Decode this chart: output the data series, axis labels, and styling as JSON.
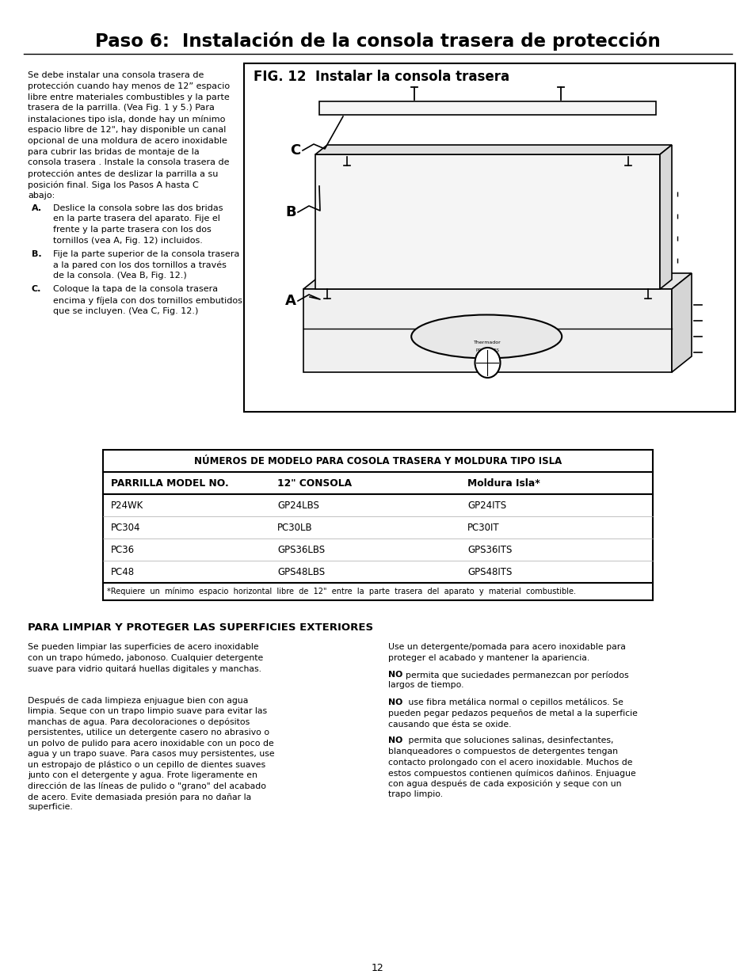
{
  "title": "Paso 6:  Instalación de la consola trasera de protección",
  "page_number": "12",
  "bg_color": "#ffffff",
  "left_col_text": [
    "Se debe instalar una consola trasera de",
    "protección cuando hay menos de 12” espacio",
    "libre entre materiales combustibles y la parte",
    "trasera de la parrilla. (Vea Fig. 1 y 5.) Para",
    "instalaciones tipo isla, donde hay un mínimo",
    "espacio libre de 12\", hay disponible un canal",
    "opcional de una moldura de acero inoxidable",
    "para cubrir las bridas de montaje de la",
    "consola trasera . Instale la consola trasera de",
    "protección antes de deslizar la parrilla a su",
    "posición final. Siga los Pasos A hasta C",
    "abajo:"
  ],
  "list_A_label": "A.",
  "list_A_lines": [
    "Deslice la consola sobre las dos bridas",
    "en la parte trasera del aparato. Fije el",
    "frente y la parte trasera con los dos",
    "tornillos (vea A, Fig. 12) incluidos."
  ],
  "list_B_label": "B.",
  "list_B_lines": [
    "Fije la parte superior de la consola trasera",
    "a la pared con los dos tornillos a través",
    "de la consola. (Vea B, Fig. 12.)"
  ],
  "list_C_label": "C.",
  "list_C_lines": [
    "Coloque la tapa de la consola trasera",
    "encima y fíjela con dos tornillos embutidos",
    "que se incluyen. (Vea C, Fig. 12.)"
  ],
  "fig_title": "FIG. 12  Instalar la consola trasera",
  "table_header1": "NÚMEROS DE MODELO PARA COSOLA TRASERA Y MOLDURA TIPO ISLA",
  "table_col1_header": "PARRILLA MODEL NO.",
  "table_col2_header": "12\" CONSOLA",
  "table_col3_header": "Moldura Isla*",
  "table_rows": [
    [
      "P24WK",
      "GP24LBS",
      "GP24ITS"
    ],
    [
      "PC304",
      "PC30LB",
      "PC30IT"
    ],
    [
      "PC36",
      "GPS36LBS",
      "GPS36ITS"
    ],
    [
      "PC48",
      "GPS48LBS",
      "GPS48ITS"
    ]
  ],
  "table_footnote": "*Requiere  un  mínimo  espacio  horizontal  libre  de  12\"  entre  la  parte  trasera  del  aparato  y  material  combustible.",
  "section2_title": "PARA LIMPIAR Y PROTEGER LAS SUPERFICIES EXTERIORES",
  "left_col2": [
    "Se pueden limpiar las superficies de acero inoxidable",
    "con un trapo húmedo, jabonoso. Cualquier detergente",
    "suave para vidrio quitará huellas digitales y manchas.",
    "",
    "",
    "Después de cada limpieza enjuague bien con agua",
    "limpia. Seque con un trapo limpio suave para evitar las",
    "manchas de agua. Para decoloraciones o depósitos",
    "persistentes, utilice un detergente casero no abrasivo o",
    "un polvo de pulido para acero inoxidable con un poco de",
    "agua y un trapo suave. Para casos muy persistentes, use",
    "un estropajo de plástico o un cepillo de dientes suaves",
    "junto con el detergente y agua. Frote ligeramente en",
    "dirección de las líneas de pulido o \"grano\" del acabado",
    "de acero. Evite demasiada presión para no dañar la",
    "superficie."
  ],
  "right_col2_para1_lines": [
    "Use un detergente/pomada para acero inoxidable para",
    "proteger el acabado y mantener la apariencia."
  ],
  "right_col2_no1": "NO",
  "right_col2_no1_text": "permita que suciedades permanezcan por períodos\nlargos de tiempo.",
  "right_col2_no2": "NO",
  "right_col2_no2_text": " use fibra metálica normal o cepillos metálicos. Se\npueden pegar pedazos pequeños de metal a la superficie\ncausando que ésta se oxide.",
  "right_col2_no3": "NO",
  "right_col2_no3_text": " permita que soluciones salinas, desinfectantes,\nblanqueadores o compuestos de detergentes tengan\ncontacto prolongado con el acero inoxidable. Muchos de\nestos compuestos contienen químicos dañinos. Enjuague\ncon agua después de cada exposición y seque con un\ntrapo limpio."
}
